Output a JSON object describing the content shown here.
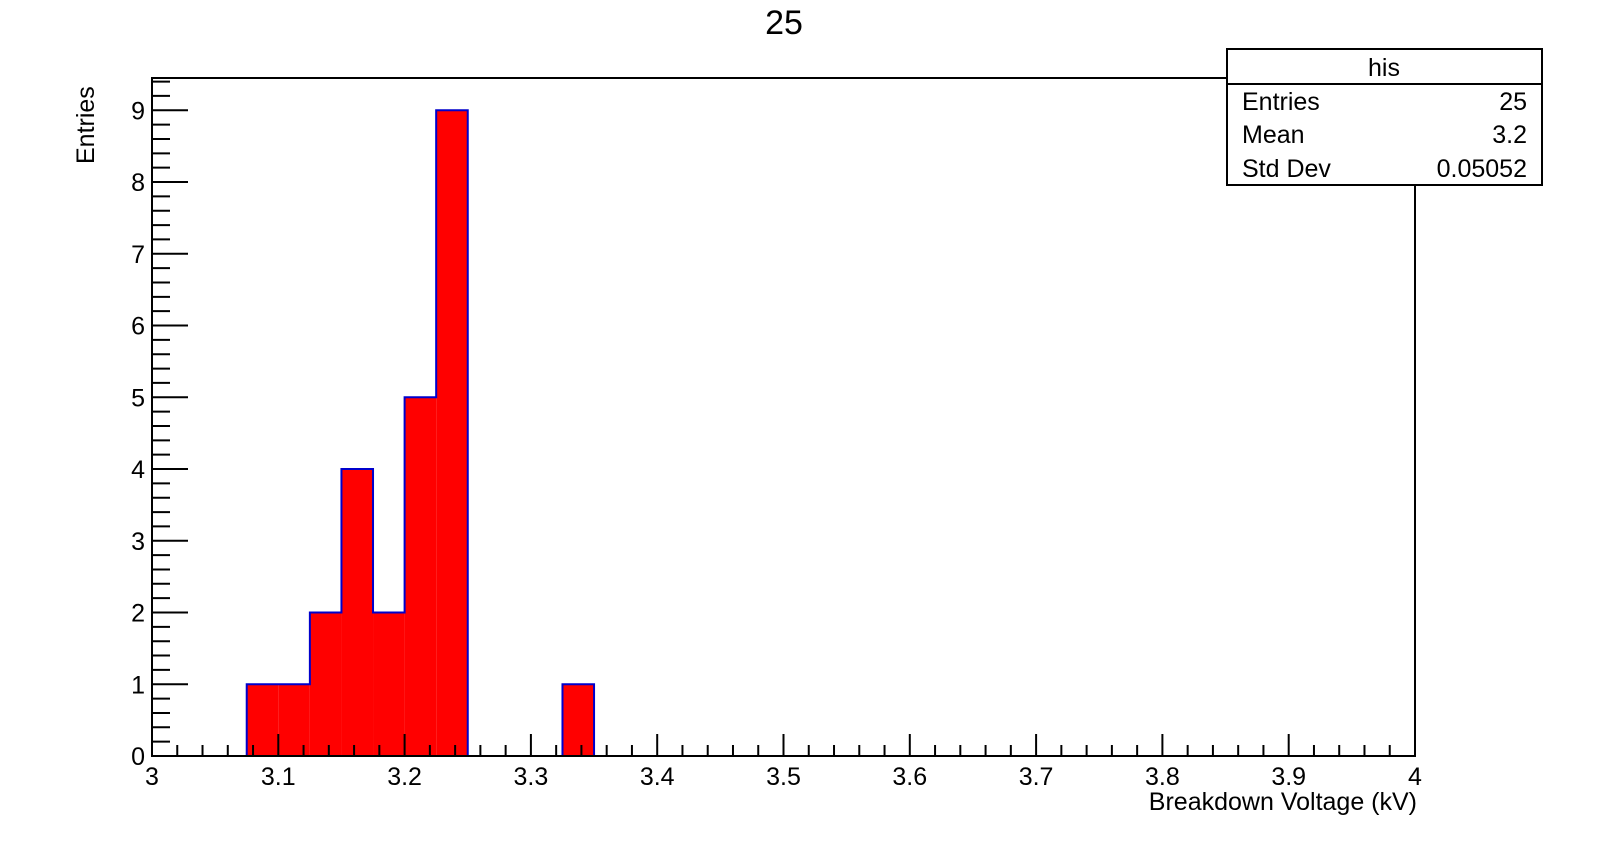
{
  "chart_data": {
    "type": "bar",
    "title": "25",
    "xlabel": "Breakdown Voltage (kV)",
    "ylabel": "Entries",
    "xlim": [
      3,
      4
    ],
    "ylim": [
      0,
      9.45
    ],
    "bin_width": 0.025,
    "bins": [
      {
        "x0": 3.075,
        "x1": 3.1,
        "value": 1
      },
      {
        "x0": 3.1,
        "x1": 3.125,
        "value": 1
      },
      {
        "x0": 3.125,
        "x1": 3.15,
        "value": 2
      },
      {
        "x0": 3.15,
        "x1": 3.175,
        "value": 4
      },
      {
        "x0": 3.175,
        "x1": 3.2,
        "value": 2
      },
      {
        "x0": 3.2,
        "x1": 3.225,
        "value": 5
      },
      {
        "x0": 3.225,
        "x1": 3.25,
        "value": 9
      },
      {
        "x0": 3.325,
        "x1": 3.35,
        "value": 1
      }
    ],
    "x_ticks": [
      "3",
      "3.1",
      "3.2",
      "3.3",
      "3.4",
      "3.5",
      "3.6",
      "3.7",
      "3.8",
      "3.9",
      "4"
    ],
    "y_ticks": [
      "0",
      "1",
      "2",
      "3",
      "4",
      "5",
      "6",
      "7",
      "8",
      "9"
    ],
    "fill_color": "#ff0000",
    "line_color": "#0000cc",
    "grid": false,
    "stats_box": {
      "title": "his",
      "placement": "top-right",
      "rows": [
        {
          "label": "Entries",
          "value": "25"
        },
        {
          "label": "Mean",
          "value": "3.2"
        },
        {
          "label": "Std Dev",
          "value": "0.05052"
        }
      ]
    }
  }
}
